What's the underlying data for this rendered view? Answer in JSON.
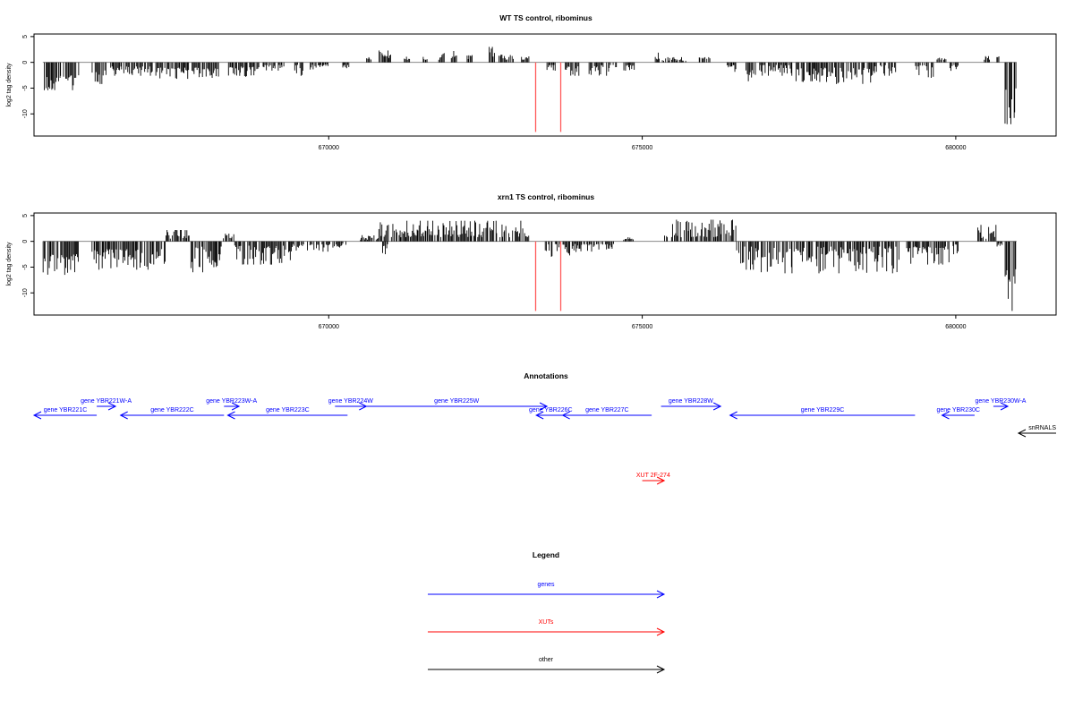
{
  "chart_data": [
    {
      "type": "bar",
      "title": "WT TS control, ribominus",
      "xlabel": "",
      "ylabel": "log2 tag density",
      "xlim": [
        665300,
        681600
      ],
      "ylim": [
        -14.3,
        5.5
      ],
      "yticks": [
        5,
        0,
        -5,
        -10
      ],
      "ytick_labels": [
        "5",
        "0",
        "-5",
        "-10"
      ],
      "xticks": [
        670000,
        675000,
        680000
      ],
      "xtick_labels": [
        "670000",
        "675000",
        "680000"
      ],
      "colors": {
        "bars": "#000000",
        "markers": "#ff5a5a",
        "zero_line": "#000000"
      },
      "markers": [
        {
          "x": 673300,
          "value": -13.5
        },
        {
          "x": 673700,
          "value": -13.5
        }
      ],
      "segments": [
        {
          "start": 665440,
          "end": 666020,
          "sign": -1,
          "min": 2.5,
          "max": 5.4
        },
        {
          "start": 666220,
          "end": 666460,
          "sign": -1,
          "min": 1.5,
          "max": 4.2
        },
        {
          "start": 666520,
          "end": 667200,
          "sign": -1,
          "min": 0.8,
          "max": 2.6
        },
        {
          "start": 667220,
          "end": 667780,
          "sign": -1,
          "min": 1.0,
          "max": 3.2
        },
        {
          "start": 667820,
          "end": 668250,
          "sign": -1,
          "min": 1.0,
          "max": 3.0
        },
        {
          "start": 668400,
          "end": 668900,
          "sign": -1,
          "min": 0.8,
          "max": 2.8
        },
        {
          "start": 668950,
          "end": 669300,
          "sign": -1,
          "min": 0.5,
          "max": 1.6
        },
        {
          "start": 669450,
          "end": 669600,
          "sign": -1,
          "min": 0.5,
          "max": 3.0
        },
        {
          "start": 669700,
          "end": 670000,
          "sign": -1,
          "min": 0.4,
          "max": 1.4
        },
        {
          "start": 670200,
          "end": 670350,
          "sign": -1,
          "min": 0.4,
          "max": 1.2
        },
        {
          "start": 670600,
          "end": 670680,
          "sign": 1,
          "min": 0.5,
          "max": 1.0
        },
        {
          "start": 670800,
          "end": 671000,
          "sign": 1,
          "min": 0.8,
          "max": 2.3
        },
        {
          "start": 671200,
          "end": 671300,
          "sign": 1,
          "min": 0.5,
          "max": 1.5
        },
        {
          "start": 671500,
          "end": 671580,
          "sign": 1,
          "min": 0.5,
          "max": 1.2
        },
        {
          "start": 671750,
          "end": 671850,
          "sign": 1,
          "min": 0.5,
          "max": 1.8
        },
        {
          "start": 671950,
          "end": 672050,
          "sign": 1,
          "min": 0.8,
          "max": 2.2
        },
        {
          "start": 672200,
          "end": 672300,
          "sign": 1,
          "min": 0.5,
          "max": 1.4
        },
        {
          "start": 672550,
          "end": 672650,
          "sign": 1,
          "min": 1.0,
          "max": 3.0
        },
        {
          "start": 672700,
          "end": 672950,
          "sign": 1,
          "min": 0.5,
          "max": 1.5
        },
        {
          "start": 673050,
          "end": 673200,
          "sign": 1,
          "min": 0.5,
          "max": 1.3
        },
        {
          "start": 673480,
          "end": 673620,
          "sign": -1,
          "min": 0.5,
          "max": 1.8
        },
        {
          "start": 673750,
          "end": 674000,
          "sign": -1,
          "min": 0.5,
          "max": 2.6
        },
        {
          "start": 674150,
          "end": 674600,
          "sign": -1,
          "min": 0.5,
          "max": 2.6
        },
        {
          "start": 674700,
          "end": 674900,
          "sign": -1,
          "min": 0.5,
          "max": 1.8
        },
        {
          "start": 675200,
          "end": 675280,
          "sign": 1,
          "min": 0.5,
          "max": 2.0
        },
        {
          "start": 675320,
          "end": 675700,
          "sign": 1,
          "min": 0.3,
          "max": 1.0
        },
        {
          "start": 675900,
          "end": 676100,
          "sign": 1,
          "min": 0.5,
          "max": 1.0
        },
        {
          "start": 676350,
          "end": 676550,
          "sign": -1,
          "min": 0.5,
          "max": 2.8
        },
        {
          "start": 676650,
          "end": 676800,
          "sign": -1,
          "min": 1.5,
          "max": 4.6
        },
        {
          "start": 676800,
          "end": 677400,
          "sign": -1,
          "min": 0.5,
          "max": 2.6
        },
        {
          "start": 677450,
          "end": 678000,
          "sign": -1,
          "min": 1.0,
          "max": 3.8
        },
        {
          "start": 678000,
          "end": 678700,
          "sign": -1,
          "min": 1.0,
          "max": 4.2
        },
        {
          "start": 678700,
          "end": 679050,
          "sign": -1,
          "min": 0.5,
          "max": 2.6
        },
        {
          "start": 679350,
          "end": 679650,
          "sign": -1,
          "min": 0.5,
          "max": 3.0
        },
        {
          "start": 679700,
          "end": 679850,
          "sign": 1,
          "min": 0.5,
          "max": 1.0
        },
        {
          "start": 679900,
          "end": 680050,
          "sign": -1,
          "min": 0.5,
          "max": 2.0
        },
        {
          "start": 680450,
          "end": 680550,
          "sign": 1,
          "min": 0.5,
          "max": 1.2
        },
        {
          "start": 680650,
          "end": 680700,
          "sign": 1,
          "min": 1.0,
          "max": 2.0
        },
        {
          "start": 680780,
          "end": 680970,
          "sign": -1,
          "min": 5.0,
          "max": 12.0
        }
      ]
    },
    {
      "type": "bar",
      "title": "xrn1 TS control, ribominus",
      "xlabel": "",
      "ylabel": "log2 tag density",
      "xlim": [
        665300,
        681600
      ],
      "ylim": [
        -14.3,
        5.5
      ],
      "yticks": [
        5,
        0,
        -5,
        -10
      ],
      "ytick_labels": [
        "5",
        "0",
        "-5",
        "-10"
      ],
      "xticks": [
        670000,
        675000,
        680000
      ],
      "xtick_labels": [
        "670000",
        "675000",
        "680000"
      ],
      "colors": {
        "bars": "#000000",
        "markers": "#ff5a5a",
        "zero_line": "#000000"
      },
      "markers": [
        {
          "x": 673300,
          "value": -13.5
        },
        {
          "x": 673700,
          "value": -13.5
        }
      ],
      "segments": [
        {
          "start": 665440,
          "end": 666020,
          "sign": -1,
          "min": 2.5,
          "max": 6.5
        },
        {
          "start": 666220,
          "end": 667400,
          "sign": -1,
          "min": 1.5,
          "max": 5.5
        },
        {
          "start": 667400,
          "end": 667800,
          "sign": 1,
          "min": 0.5,
          "max": 2.2
        },
        {
          "start": 667800,
          "end": 668300,
          "sign": -1,
          "min": 1.0,
          "max": 6.0
        },
        {
          "start": 668300,
          "end": 668500,
          "sign": 1,
          "min": 0.5,
          "max": 1.5
        },
        {
          "start": 668500,
          "end": 669400,
          "sign": -1,
          "min": 0.8,
          "max": 4.5
        },
        {
          "start": 669400,
          "end": 670000,
          "sign": -1,
          "min": 0.5,
          "max": 2.0
        },
        {
          "start": 670000,
          "end": 670300,
          "sign": -1,
          "min": 0.4,
          "max": 1.2
        },
        {
          "start": 670500,
          "end": 670800,
          "sign": 1,
          "min": 0.3,
          "max": 1.2
        },
        {
          "start": 670800,
          "end": 673200,
          "sign": 1,
          "min": 0.8,
          "max": 4.0
        },
        {
          "start": 670850,
          "end": 670950,
          "sign": -1,
          "min": 0.5,
          "max": 2.5
        },
        {
          "start": 673450,
          "end": 674000,
          "sign": -1,
          "min": 0.5,
          "max": 3.0
        },
        {
          "start": 674000,
          "end": 674550,
          "sign": -1,
          "min": 0.5,
          "max": 2.0
        },
        {
          "start": 674700,
          "end": 674880,
          "sign": 1,
          "min": 0.3,
          "max": 0.8
        },
        {
          "start": 675350,
          "end": 676500,
          "sign": 1,
          "min": 0.8,
          "max": 4.2
        },
        {
          "start": 676500,
          "end": 676800,
          "sign": -1,
          "min": 1.0,
          "max": 5.5
        },
        {
          "start": 676800,
          "end": 679100,
          "sign": -1,
          "min": 1.0,
          "max": 6.2
        },
        {
          "start": 679200,
          "end": 679900,
          "sign": -1,
          "min": 1.0,
          "max": 4.5
        },
        {
          "start": 679950,
          "end": 680050,
          "sign": -1,
          "min": 0.5,
          "max": 2.5
        },
        {
          "start": 680350,
          "end": 680650,
          "sign": 1,
          "min": 0.5,
          "max": 3.2
        },
        {
          "start": 680650,
          "end": 680750,
          "sign": -1,
          "min": 0.3,
          "max": 1.0
        },
        {
          "start": 680780,
          "end": 680970,
          "sign": -1,
          "min": 4.0,
          "max": 13.5
        }
      ]
    },
    {
      "type": "other",
      "title": "Annotations",
      "features": [
        {
          "label": "gene YBR221C",
          "start": 665300,
          "end": 666300,
          "strand": "-",
          "row": 2,
          "kind": "gene"
        },
        {
          "label": "gene YBR221W-A",
          "start": 666300,
          "end": 666600,
          "strand": "+",
          "row": 1,
          "kind": "gene"
        },
        {
          "label": "gene YBR222C",
          "start": 666680,
          "end": 668330,
          "strand": "-",
          "row": 2,
          "kind": "gene"
        },
        {
          "label": "gene YBR223W-A",
          "start": 668330,
          "end": 668570,
          "strand": "+",
          "row": 1,
          "kind": "gene"
        },
        {
          "label": "gene YBR223C",
          "start": 668390,
          "end": 670300,
          "strand": "-",
          "row": 2,
          "kind": "gene"
        },
        {
          "label": "gene YBR224W",
          "start": 670100,
          "end": 670600,
          "strand": "+",
          "row": 1,
          "kind": "gene"
        },
        {
          "label": "gene YBR225W",
          "start": 670600,
          "end": 673480,
          "strand": "+",
          "row": 1,
          "kind": "gene"
        },
        {
          "label": "gene YBR226C",
          "start": 673310,
          "end": 673770,
          "strand": "-",
          "row": 2,
          "kind": "gene"
        },
        {
          "label": "gene YBR227C",
          "start": 673730,
          "end": 675150,
          "strand": "-",
          "row": 2,
          "kind": "gene"
        },
        {
          "label": "gene YBR228W",
          "start": 675300,
          "end": 676250,
          "strand": "+",
          "row": 1,
          "kind": "gene"
        },
        {
          "label": "gene YBR229C",
          "start": 676400,
          "end": 679350,
          "strand": "-",
          "row": 2,
          "kind": "gene"
        },
        {
          "label": "gene YBR230C",
          "start": 679780,
          "end": 680300,
          "strand": "-",
          "row": 2,
          "kind": "gene"
        },
        {
          "label": "gene YBR230W-A",
          "start": 680600,
          "end": 680830,
          "strand": "+",
          "row": 1,
          "kind": "gene"
        },
        {
          "label": "snRNALS",
          "start": 681000,
          "end": 681600,
          "strand": "-",
          "row": 3,
          "kind": "other"
        },
        {
          "label": "XUT 2F-274",
          "start": 675000,
          "end": 675350,
          "strand": "+",
          "row": 4,
          "kind": "xut"
        }
      ]
    },
    {
      "type": "other",
      "title": "Legend",
      "entries": [
        {
          "label": "genes",
          "color": "#0000ff"
        },
        {
          "label": "XUTs",
          "color": "#ff0000"
        },
        {
          "label": "other",
          "color": "#000000"
        }
      ]
    }
  ]
}
